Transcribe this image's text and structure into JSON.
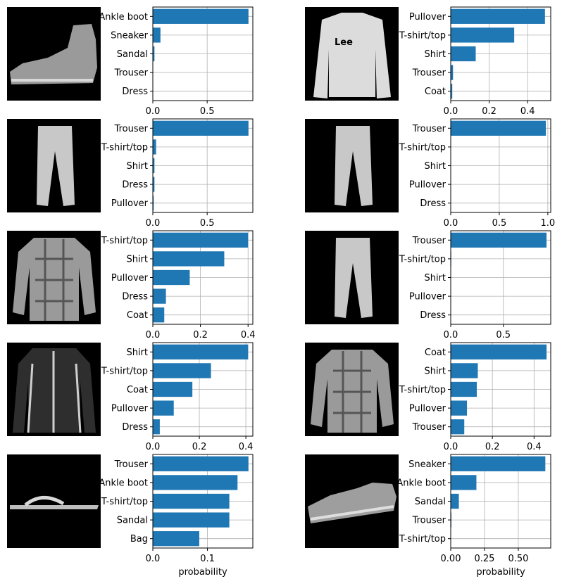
{
  "colors": {
    "bar": "#1f77b4",
    "grid": "#b0b0b0",
    "axes": "#000000",
    "thumb_bg": "#000000"
  },
  "chart_data": [
    {
      "type": "bar",
      "orientation": "horizontal",
      "image": "ankle-boot-icon",
      "categories": [
        "Ankle boot",
        "Sneaker",
        "Sandal",
        "Trouser",
        "Dress"
      ],
      "values": [
        0.88,
        0.07,
        0.015,
        0.003,
        0.002
      ],
      "xlim": [
        0,
        0.92
      ],
      "xticks": [
        0,
        0.5
      ],
      "xtick_labels": [
        "0.0",
        "0.5"
      ],
      "xlabel": "",
      "grid": true
    },
    {
      "type": "bar",
      "orientation": "horizontal",
      "image": "pullover-icon",
      "categories": [
        "Pullover",
        "T-shirt/top",
        "Shirt",
        "Trouser",
        "Coat"
      ],
      "values": [
        0.49,
        0.33,
        0.13,
        0.012,
        0.008
      ],
      "xlim": [
        0,
        0.52
      ],
      "xticks": [
        0,
        0.2,
        0.4
      ],
      "xtick_labels": [
        "0.0",
        "0.2",
        "0.4"
      ],
      "xlabel": "",
      "grid": true
    },
    {
      "type": "bar",
      "orientation": "horizontal",
      "image": "trouser-icon",
      "categories": [
        "Trouser",
        "T-shirt/top",
        "Shirt",
        "Dress",
        "Pullover"
      ],
      "values": [
        0.88,
        0.03,
        0.015,
        0.015,
        0.008
      ],
      "xlim": [
        0,
        0.92
      ],
      "xticks": [
        0,
        0.5
      ],
      "xtick_labels": [
        "0.0",
        "0.5"
      ],
      "xlabel": "",
      "grid": true
    },
    {
      "type": "bar",
      "orientation": "horizontal",
      "image": "trouser-icon",
      "categories": [
        "Trouser",
        "T-shirt/top",
        "Shirt",
        "Pullover",
        "Dress"
      ],
      "values": [
        0.98,
        0.003,
        0.002,
        0.001,
        0.001
      ],
      "xlim": [
        0,
        1.03
      ],
      "xticks": [
        0,
        0.5,
        1.0
      ],
      "xtick_labels": [
        "0.0",
        "0.5",
        "1.0"
      ],
      "xlabel": "",
      "grid": true
    },
    {
      "type": "bar",
      "orientation": "horizontal",
      "image": "shirt-icon",
      "categories": [
        "T-shirt/top",
        "Shirt",
        "Pullover",
        "Dress",
        "Coat"
      ],
      "values": [
        0.4,
        0.3,
        0.155,
        0.055,
        0.048
      ],
      "xlim": [
        0,
        0.42
      ],
      "xticks": [
        0,
        0.2,
        0.4
      ],
      "xtick_labels": [
        "0.0",
        "0.2",
        "0.4"
      ],
      "xlabel": "",
      "grid": true
    },
    {
      "type": "bar",
      "orientation": "horizontal",
      "image": "trouser-icon",
      "categories": [
        "Trouser",
        "T-shirt/top",
        "Shirt",
        "Pullover",
        "Dress"
      ],
      "values": [
        0.91,
        0.005,
        0.002,
        0.001,
        0.001
      ],
      "xlim": [
        0,
        0.95
      ],
      "xticks": [
        0,
        0.5
      ],
      "xtick_labels": [
        "0.0",
        "0.5"
      ],
      "xlabel": "",
      "grid": true
    },
    {
      "type": "bar",
      "orientation": "horizontal",
      "image": "coat-icon",
      "categories": [
        "Shirt",
        "T-shirt/top",
        "Coat",
        "Pullover",
        "Dress"
      ],
      "values": [
        0.41,
        0.25,
        0.17,
        0.09,
        0.03
      ],
      "xlim": [
        0,
        0.43
      ],
      "xticks": [
        0,
        0.2,
        0.4
      ],
      "xtick_labels": [
        "0.0",
        "0.2",
        "0.4"
      ],
      "xlabel": "",
      "grid": true
    },
    {
      "type": "bar",
      "orientation": "horizontal",
      "image": "shirt-icon",
      "categories": [
        "Coat",
        "Shirt",
        "T-shirt/top",
        "Pullover",
        "Trouser"
      ],
      "values": [
        0.46,
        0.13,
        0.125,
        0.078,
        0.065
      ],
      "xlim": [
        0,
        0.48
      ],
      "xticks": [
        0,
        0.2,
        0.4
      ],
      "xtick_labels": [
        "0.0",
        "0.2",
        "0.4"
      ],
      "xlabel": "",
      "grid": true
    },
    {
      "type": "bar",
      "orientation": "horizontal",
      "image": "sandal-icon",
      "categories": [
        "Trouser",
        "Ankle boot",
        "T-shirt/top",
        "Sandal",
        "Bag"
      ],
      "values": [
        0.175,
        0.155,
        0.14,
        0.14,
        0.085
      ],
      "xlim": [
        0,
        0.183
      ],
      "xticks": [
        0,
        0.1
      ],
      "xtick_labels": [
        "0.0",
        "0.1"
      ],
      "xlabel": "probability",
      "grid": true
    },
    {
      "type": "bar",
      "orientation": "horizontal",
      "image": "sneaker-icon",
      "categories": [
        "Sneaker",
        "Ankle boot",
        "Sandal",
        "Trouser",
        "T-shirt/top"
      ],
      "values": [
        0.7,
        0.19,
        0.06,
        0.005,
        0.002
      ],
      "xlim": [
        0,
        0.74
      ],
      "xticks": [
        0,
        0.25,
        0.5
      ],
      "xtick_labels": [
        "0.00",
        "0.25",
        "0.50"
      ],
      "xlabel": "probability",
      "grid": true
    }
  ]
}
